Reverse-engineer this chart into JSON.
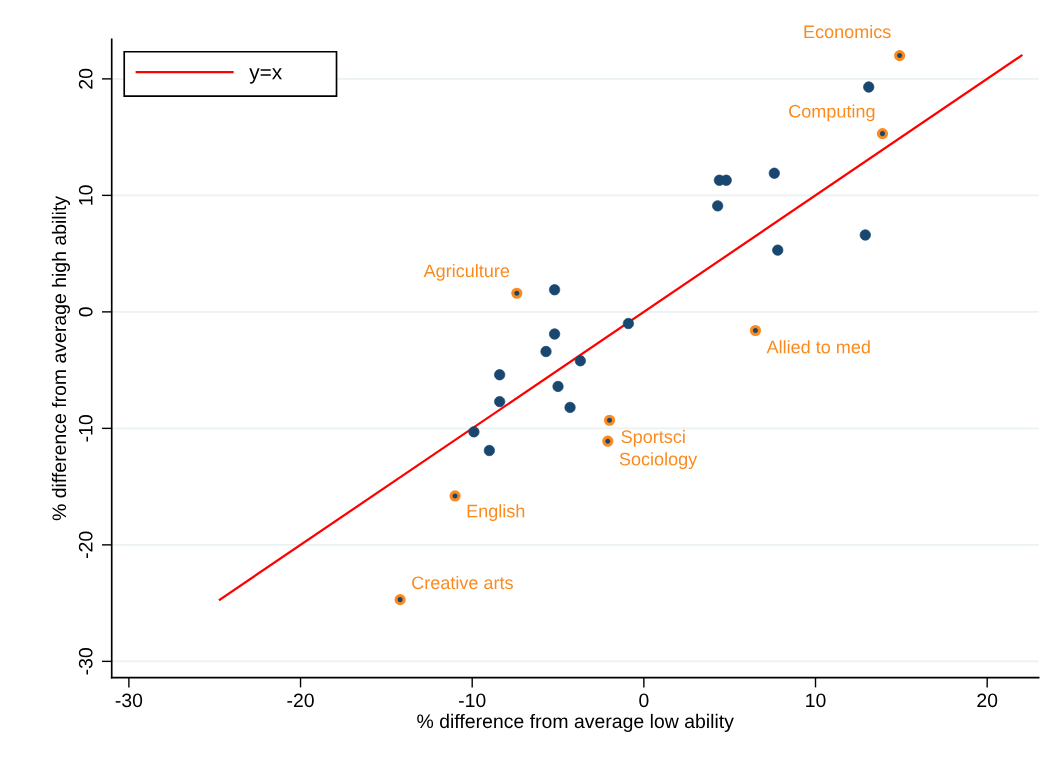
{
  "chart_data": {
    "type": "scatter",
    "xlabel": "% difference from average low ability",
    "ylabel": "% difference from average high ability",
    "xlim": [
      -31,
      23
    ],
    "ylim": [
      -31.4,
      23.4
    ],
    "xticks": [
      -30,
      -20,
      -10,
      0,
      10,
      20
    ],
    "yticks": [
      -30,
      -20,
      -10,
      0,
      10,
      20
    ],
    "grid": "y",
    "legend": "top left",
    "marker": "circle",
    "series": [
      {
        "color": "#1a476f",
        "x": [
          -5.2,
          -5.2,
          -5.7,
          -8.4,
          -3.7,
          -8.4,
          -5.0,
          -4.3,
          -9.9,
          -9.0,
          13.1,
          4.4,
          4.8,
          7.6,
          4.3,
          12.9,
          7.8,
          -0.9
        ],
        "values": [
          1.9,
          -1.9,
          -3.4,
          -5.4,
          -4.2,
          -7.7,
          -6.4,
          -8.2,
          -10.3,
          -11.9,
          19.3,
          11.3,
          11.3,
          11.9,
          9.1,
          6.6,
          5.3,
          -1.0
        ]
      },
      {
        "color": "#fa8a1e",
        "x": [
          14.9,
          13.9,
          -7.4,
          6.5,
          -2.0,
          -2.1,
          -11.0,
          -14.2
        ],
        "values": [
          22.0,
          15.3,
          1.6,
          -1.6,
          -9.3,
          -11.1,
          -15.8,
          -24.7
        ]
      },
      {
        "name": "y=x",
        "type": "line",
        "color": "#ff0000",
        "marker": "none",
        "line_style": "solid",
        "x": [
          -24.7,
          22.0
        ],
        "values": [
          -24.7,
          22.0
        ]
      }
    ],
    "annotations": [
      {
        "text": "Economics",
        "x": 14.9,
        "y": 22.0
      },
      {
        "text": "Computing",
        "x": 13.9,
        "y": 15.3
      },
      {
        "text": "Agriculture",
        "x": -7.4,
        "y": 1.6
      },
      {
        "text": "Allied to med",
        "x": 6.5,
        "y": -1.6
      },
      {
        "text": "Sportsci",
        "x": -2.0,
        "y": -9.3
      },
      {
        "text": "Sociology",
        "x": -2.1,
        "y": -11.1
      },
      {
        "text": "English",
        "x": -11.0,
        "y": -15.8
      },
      {
        "text": "Creative arts",
        "x": -14.2,
        "y": -24.7
      }
    ]
  }
}
